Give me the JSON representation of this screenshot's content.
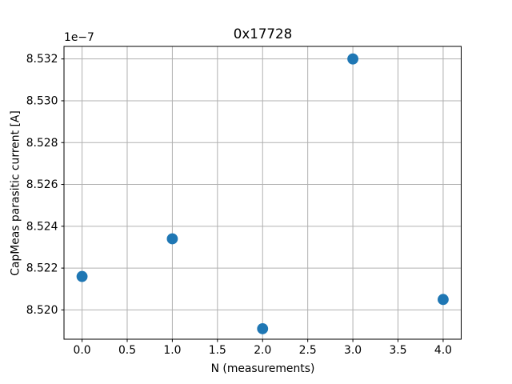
{
  "chart_data": {
    "type": "scatter",
    "title": "0x17728",
    "xlabel": "N (measurements)",
    "ylabel": "CapMeas parasitic current [A]",
    "y_offset_text": "1e−7",
    "x": [
      0,
      1,
      2,
      3,
      4
    ],
    "y": [
      8.5216,
      8.5234,
      8.5191,
      8.532,
      8.5205
    ],
    "y_unit_multiplier": "1e-7",
    "xlim": [
      -0.2,
      4.2
    ],
    "ylim": [
      8.5186,
      8.5326
    ],
    "xticks": [
      0.0,
      0.5,
      1.0,
      1.5,
      2.0,
      2.5,
      3.0,
      3.5,
      4.0
    ],
    "xtick_labels": [
      "0.0",
      "0.5",
      "1.0",
      "1.5",
      "2.0",
      "2.5",
      "3.0",
      "3.5",
      "4.0"
    ],
    "yticks": [
      8.52,
      8.522,
      8.524,
      8.526,
      8.528,
      8.53,
      8.532
    ],
    "ytick_labels": [
      "8.520",
      "8.522",
      "8.524",
      "8.526",
      "8.528",
      "8.530",
      "8.532"
    ],
    "grid": true,
    "legend_position": "none",
    "colors": {
      "marker": "#1f77b4",
      "grid": "#b0b0b0",
      "axes": "#000000",
      "background": "#ffffff"
    }
  }
}
